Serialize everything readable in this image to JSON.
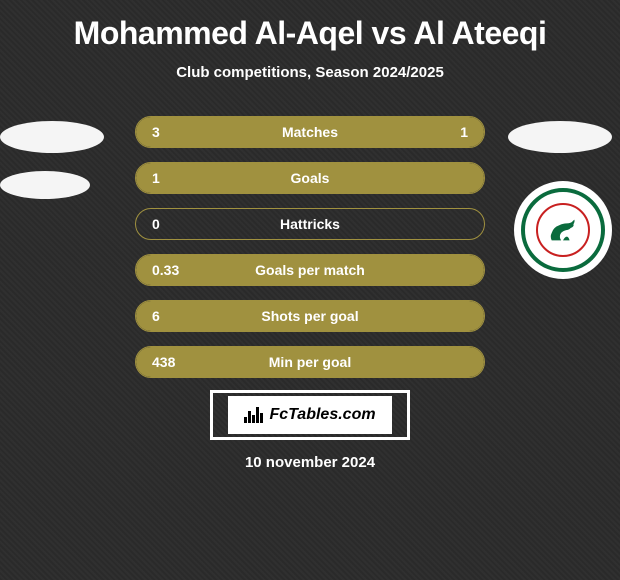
{
  "title": "Mohammed Al-Aqel vs Al Ateeqi",
  "subtitle": "Club competitions, Season 2024/2025",
  "colors": {
    "bar_fill": "#a0913f",
    "bar_border": "#a0913f",
    "background": "#2a2a2a",
    "text": "#ffffff",
    "ettifaq_green": "#0a6b3d",
    "ettifaq_red": "#c82020"
  },
  "stats": [
    {
      "label": "Matches",
      "left_value": "3",
      "right_value": "1",
      "left_percent": 78,
      "right_percent": 22,
      "show_right": true
    },
    {
      "label": "Goals",
      "left_value": "1",
      "right_value": "",
      "left_percent": 100,
      "right_percent": 0,
      "show_right": false
    },
    {
      "label": "Hattricks",
      "left_value": "0",
      "right_value": "",
      "left_percent": 0,
      "right_percent": 0,
      "show_right": false
    },
    {
      "label": "Goals per match",
      "left_value": "0.33",
      "right_value": "",
      "left_percent": 100,
      "right_percent": 0,
      "show_right": false
    },
    {
      "label": "Shots per goal",
      "left_value": "6",
      "right_value": "",
      "left_percent": 100,
      "right_percent": 0,
      "show_right": false
    },
    {
      "label": "Min per goal",
      "left_value": "438",
      "right_value": "",
      "left_percent": 100,
      "right_percent": 0,
      "show_right": false
    }
  ],
  "footer": {
    "brand": "FcTables.com",
    "date": "10 november 2024"
  },
  "left_player": {
    "shape1": true,
    "shape2": true
  },
  "right_player": {
    "shape1": true,
    "logo": "ettifaq"
  }
}
